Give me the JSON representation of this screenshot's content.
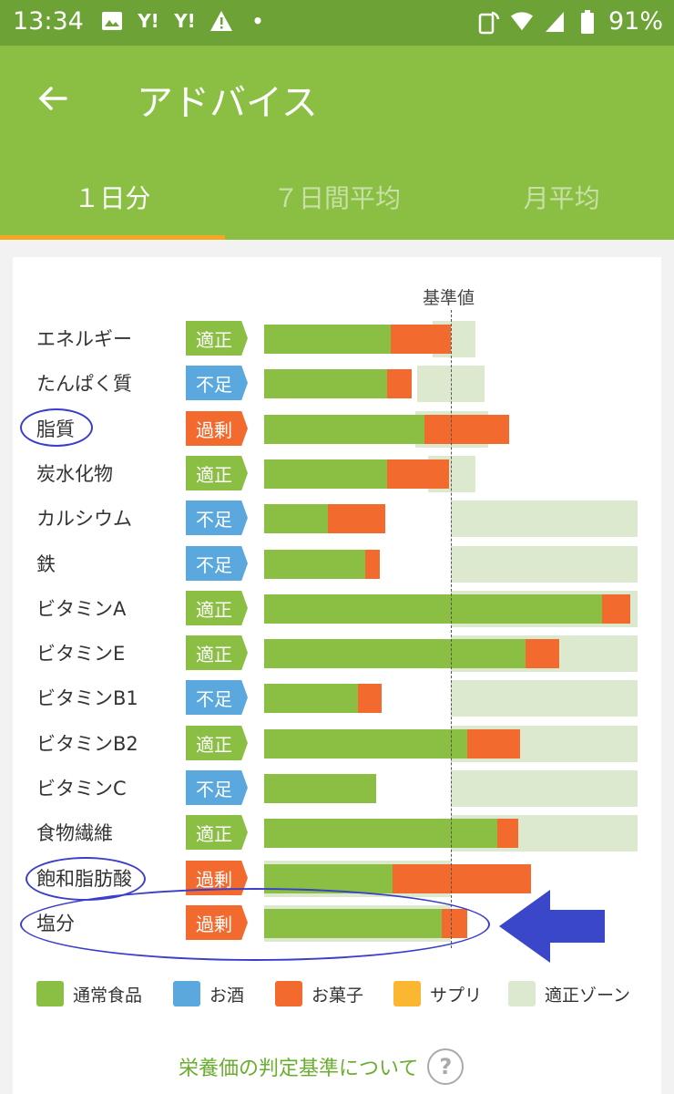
{
  "status_bar": {
    "time": "13:34",
    "battery": "91%"
  },
  "app_bar": {
    "title": "アドバイス"
  },
  "tabs": [
    {
      "label": "１日分",
      "active": true
    },
    {
      "label": "７日間平均",
      "active": false
    },
    {
      "label": "月平均",
      "active": false
    }
  ],
  "chart_header": {
    "baseline_label": "基準値"
  },
  "chart_data": {
    "type": "bar",
    "orientation": "horizontal",
    "stacked": true,
    "note": "values read as approximate percent of 基準値 (reference value = 100)",
    "categories": [
      "エネルギー",
      "たんぱく質",
      "脂質",
      "炭水化物",
      "カルシウム",
      "鉄",
      "ビタミンA",
      "ビタミンE",
      "ビタミンB1",
      "ビタミンB2",
      "ビタミンC",
      "食物繊維",
      "飽和脂肪酸",
      "塩分"
    ],
    "judgements": [
      "適正",
      "不足",
      "過剰",
      "適正",
      "不足",
      "不足",
      "適正",
      "適正",
      "不足",
      "適正",
      "不足",
      "適正",
      "過剰",
      "過剰"
    ],
    "series": [
      {
        "name": "通常食品",
        "values": [
          68,
          66,
          86,
          66,
          34,
          54,
          181,
          140,
          50,
          109,
          60,
          125,
          69,
          95
        ]
      },
      {
        "name": "お酒",
        "values": [
          0,
          0,
          0,
          0,
          0,
          0,
          0,
          0,
          0,
          0,
          0,
          0,
          0,
          0
        ]
      },
      {
        "name": "お菓子",
        "values": [
          32,
          13,
          45,
          33,
          31,
          8,
          15,
          18,
          13,
          28,
          0,
          11,
          74,
          14
        ]
      },
      {
        "name": "サプリ",
        "values": [
          0,
          0,
          0,
          0,
          0,
          0,
          0,
          0,
          0,
          0,
          0,
          0,
          0,
          0
        ]
      }
    ],
    "appropriate_zone": [
      [
        90,
        113
      ],
      [
        82,
        118
      ],
      [
        81,
        120
      ],
      [
        88,
        113
      ],
      [
        100,
        200
      ],
      [
        100,
        200
      ],
      [
        100,
        200
      ],
      [
        100,
        200
      ],
      [
        100,
        200
      ],
      [
        100,
        200
      ],
      [
        100,
        200
      ],
      [
        100,
        200
      ],
      [
        0,
        100
      ],
      [
        0,
        100
      ]
    ],
    "xlim": [
      0,
      200
    ],
    "baseline": 100
  },
  "legend": [
    {
      "label": "通常食品",
      "color": "#8bbf44"
    },
    {
      "label": "お酒",
      "color": "#5aa8dd"
    },
    {
      "label": "お菓子",
      "color": "#f26a2e"
    },
    {
      "label": "サプリ",
      "color": "#fbb731"
    },
    {
      "label": "適正ゾーン",
      "color": "#dde9cf"
    }
  ],
  "colors": {
    "ok": "#8bbf44",
    "low": "#5aa8dd",
    "over": "#f26a2e"
  },
  "footer": {
    "link_label": "栄養価の判定基準について",
    "help_symbol": "?"
  }
}
